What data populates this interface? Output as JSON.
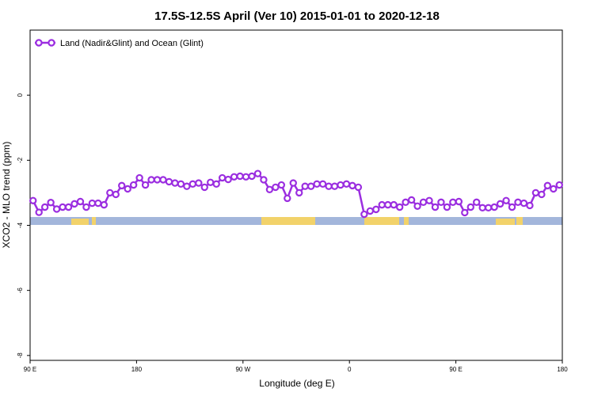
{
  "chart_data": {
    "type": "line",
    "title": "17.5S-12.5S April (Ver 10)   2015-01-01 to 2020-12-18",
    "xlabel": "Longitude (deg E)",
    "ylabel": "XCO2 - MLO trend (ppm)",
    "x": [
      92.5,
      97.5,
      102.5,
      107.5,
      112.5,
      117.5,
      122.5,
      127.5,
      132.5,
      137.5,
      142.5,
      147.5,
      152.5,
      157.5,
      162.5,
      167.5,
      172.5,
      177.5,
      182.5,
      187.5,
      192.5,
      197.5,
      202.5,
      207.5,
      212.5,
      217.5,
      222.5,
      227.5,
      232.5,
      237.5,
      242.5,
      247.5,
      252.5,
      257.5,
      262.5,
      267.5,
      272.5,
      277.5,
      282.5,
      287.5,
      292.5,
      297.5,
      302.5,
      307.5,
      312.5,
      317.5,
      322.5,
      327.5,
      332.5,
      337.5,
      342.5,
      347.5,
      352.5,
      357.5,
      362.5,
      367.5,
      372.5,
      377.5,
      382.5,
      387.5,
      392.5,
      397.5,
      402.5,
      407.5,
      412.5,
      417.5,
      422.5,
      427.5,
      432.5,
      437.5,
      442.5,
      447.5,
      452.5,
      457.5,
      462.5,
      467.5,
      472.5,
      477.5,
      482.5,
      487.5,
      492.5,
      497.5,
      502.5,
      507.5,
      512.5,
      517.5,
      522.5,
      527.5,
      532.5,
      537.5
    ],
    "series": [
      {
        "name": "Land (Nadir&Glint) and Ocean (Glint)",
        "color": "#9b2ee0",
        "values": [
          -3.24,
          -3.6,
          -3.44,
          -3.3,
          -3.5,
          -3.44,
          -3.44,
          -3.34,
          -3.27,
          -3.44,
          -3.32,
          -3.32,
          -3.37,
          -3.0,
          -3.05,
          -2.78,
          -2.88,
          -2.76,
          -2.54,
          -2.76,
          -2.6,
          -2.6,
          -2.6,
          -2.66,
          -2.7,
          -2.73,
          -2.8,
          -2.73,
          -2.7,
          -2.83,
          -2.68,
          -2.73,
          -2.54,
          -2.59,
          -2.51,
          -2.49,
          -2.51,
          -2.49,
          -2.41,
          -2.6,
          -2.9,
          -2.83,
          -2.76,
          -3.17,
          -2.7,
          -3.0,
          -2.8,
          -2.8,
          -2.73,
          -2.73,
          -2.8,
          -2.8,
          -2.76,
          -2.73,
          -2.78,
          -2.83,
          -3.66,
          -3.56,
          -3.51,
          -3.37,
          -3.37,
          -3.37,
          -3.44,
          -3.29,
          -3.22,
          -3.41,
          -3.29,
          -3.24,
          -3.44,
          -3.29,
          -3.44,
          -3.29,
          -3.27,
          -3.61,
          -3.44,
          -3.29,
          -3.46,
          -3.46,
          -3.44,
          -3.34,
          -3.24,
          -3.44,
          -3.29,
          -3.32,
          -3.39,
          -3.0,
          -3.05,
          -2.78,
          -2.88,
          -2.76
        ]
      }
    ],
    "xlim": [
      90,
      540
    ],
    "xticks": [
      {
        "value": 90,
        "label": "90 E"
      },
      {
        "value": 180,
        "label": "180"
      },
      {
        "value": 270,
        "label": "90 W"
      },
      {
        "value": 360,
        "label": "0"
      },
      {
        "value": 450,
        "label": "90 E"
      },
      {
        "value": 540,
        "label": "180"
      }
    ],
    "ylim": [
      -8.15,
      2
    ],
    "yticks": [
      0,
      -2,
      -4,
      -6,
      -8
    ],
    "legend": "top-left",
    "grid": false
  }
}
